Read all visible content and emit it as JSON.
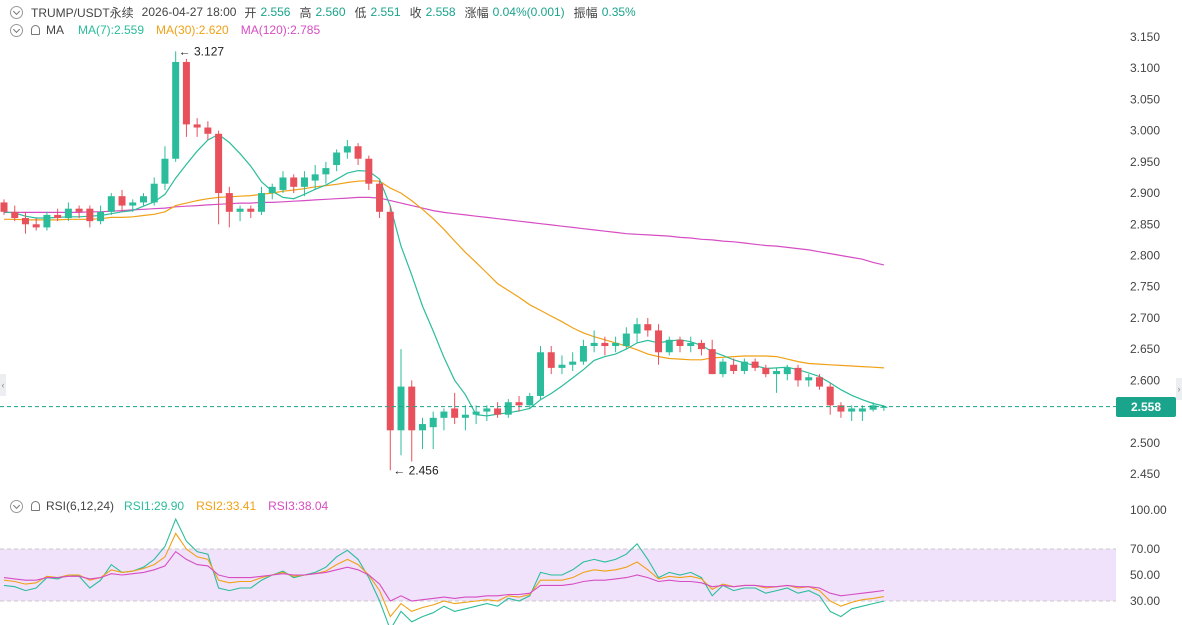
{
  "header": {
    "symbol": "TRUMP/USDT永续",
    "datetime": "2026-04-27 18:00",
    "open_label": "开",
    "open": "2.556",
    "high_label": "高",
    "high": "2.560",
    "low_label": "低",
    "low": "2.551",
    "close_label": "收",
    "close": "2.558",
    "change_label": "涨幅",
    "change": "0.04%(0.001)",
    "amp_label": "振幅",
    "amp": "0.35%"
  },
  "ma_legend": {
    "name": "MA",
    "ma7": "MA(7):2.559",
    "ma30": "MA(30):2.620",
    "ma120": "MA(120):2.785"
  },
  "rsi_legend": {
    "name": "RSI(6,12,24)",
    "rsi1": "RSI1:29.90",
    "rsi2": "RSI2:33.41",
    "rsi3": "RSI3:38.04"
  },
  "last_price_label": "2.558",
  "annotations": {
    "high": "← 3.127",
    "low": "← 2.456"
  },
  "colors": {
    "up": "#2bbd9b",
    "down": "#e8505b",
    "ma7": "#2bbd9b",
    "ma30": "#f0a116",
    "ma120": "#d64dc3",
    "rsi_band": "#efe2fa",
    "last_price": "#1aa48b"
  },
  "chart_data": [
    {
      "type": "candlestick",
      "title": "TRUMP/USDT永续",
      "ylim": [
        2.43,
        3.165
      ],
      "y_ticks": [
        "3.150",
        "3.100",
        "3.050",
        "3.000",
        "2.950",
        "2.900",
        "2.850",
        "2.800",
        "2.750",
        "2.700",
        "2.650",
        "2.600",
        "2.550",
        "2.500",
        "2.450"
      ],
      "last_price": 2.558,
      "ohlc": [
        [
          2.885,
          2.89,
          2.865,
          2.87
        ],
        [
          2.87,
          2.88,
          2.855,
          2.86
        ],
        [
          2.86,
          2.87,
          2.835,
          2.85
        ],
        [
          2.85,
          2.86,
          2.84,
          2.845
        ],
        [
          2.845,
          2.87,
          2.84,
          2.865
        ],
        [
          2.865,
          2.875,
          2.855,
          2.86
        ],
        [
          2.86,
          2.885,
          2.855,
          2.875
        ],
        [
          2.875,
          2.88,
          2.86,
          2.87
        ],
        [
          2.875,
          2.88,
          2.845,
          2.855
        ],
        [
          2.855,
          2.88,
          2.85,
          2.87
        ],
        [
          2.87,
          2.9,
          2.865,
          2.895
        ],
        [
          2.895,
          2.905,
          2.87,
          2.88
        ],
        [
          2.88,
          2.89,
          2.87,
          2.885
        ],
        [
          2.885,
          2.9,
          2.88,
          2.895
        ],
        [
          2.885,
          2.925,
          2.88,
          2.915
        ],
        [
          2.915,
          2.975,
          2.905,
          2.955
        ],
        [
          2.955,
          3.127,
          2.95,
          3.11
        ],
        [
          3.11,
          3.115,
          2.99,
          3.01
        ],
        [
          3.01,
          3.02,
          2.99,
          3.005
        ],
        [
          3.005,
          3.015,
          2.985,
          2.995
        ],
        [
          2.995,
          3.0,
          2.85,
          2.9
        ],
        [
          2.9,
          2.91,
          2.845,
          2.87
        ],
        [
          2.87,
          2.88,
          2.855,
          2.875
        ],
        [
          2.875,
          2.88,
          2.86,
          2.87
        ],
        [
          2.87,
          2.91,
          2.865,
          2.9
        ],
        [
          2.9,
          2.915,
          2.89,
          2.91
        ],
        [
          2.905,
          2.935,
          2.9,
          2.925
        ],
        [
          2.925,
          2.93,
          2.9,
          2.91
        ],
        [
          2.91,
          2.935,
          2.895,
          2.925
        ],
        [
          2.92,
          2.945,
          2.905,
          2.93
        ],
        [
          2.93,
          2.95,
          2.915,
          2.94
        ],
        [
          2.945,
          2.97,
          2.935,
          2.965
        ],
        [
          2.965,
          2.985,
          2.955,
          2.975
        ],
        [
          2.975,
          2.98,
          2.945,
          2.955
        ],
        [
          2.955,
          2.96,
          2.905,
          2.915
        ],
        [
          2.915,
          2.92,
          2.86,
          2.87
        ],
        [
          2.87,
          2.88,
          2.456,
          2.52
        ],
        [
          2.52,
          2.65,
          2.48,
          2.59
        ],
        [
          2.59,
          2.6,
          2.47,
          2.52
        ],
        [
          2.52,
          2.54,
          2.49,
          2.53
        ],
        [
          2.525,
          2.55,
          2.49,
          2.54
        ],
        [
          2.54,
          2.555,
          2.52,
          2.55
        ],
        [
          2.555,
          2.58,
          2.53,
          2.54
        ],
        [
          2.54,
          2.56,
          2.52,
          2.545
        ],
        [
          2.545,
          2.56,
          2.53,
          2.55
        ],
        [
          2.55,
          2.56,
          2.535,
          2.555
        ],
        [
          2.555,
          2.565,
          2.54,
          2.545
        ],
        [
          2.545,
          2.57,
          2.54,
          2.565
        ],
        [
          2.565,
          2.575,
          2.55,
          2.56
        ],
        [
          2.56,
          2.58,
          2.555,
          2.575
        ],
        [
          2.575,
          2.655,
          2.57,
          2.645
        ],
        [
          2.645,
          2.655,
          2.61,
          2.62
        ],
        [
          2.62,
          2.64,
          2.61,
          2.625
        ],
        [
          2.625,
          2.645,
          2.615,
          2.63
        ],
        [
          2.63,
          2.665,
          2.625,
          2.655
        ],
        [
          2.655,
          2.68,
          2.645,
          2.66
        ],
        [
          2.66,
          2.67,
          2.64,
          2.655
        ],
        [
          2.655,
          2.67,
          2.645,
          2.66
        ],
        [
          2.655,
          2.685,
          2.65,
          2.675
        ],
        [
          2.675,
          2.7,
          2.66,
          2.69
        ],
        [
          2.69,
          2.7,
          2.67,
          2.68
        ],
        [
          2.68,
          2.69,
          2.625,
          2.645
        ],
        [
          2.645,
          2.67,
          2.64,
          2.665
        ],
        [
          2.665,
          2.67,
          2.645,
          2.655
        ],
        [
          2.655,
          2.67,
          2.645,
          2.66
        ],
        [
          2.66,
          2.665,
          2.64,
          2.65
        ],
        [
          2.65,
          2.665,
          2.61,
          2.61
        ],
        [
          2.61,
          2.635,
          2.605,
          2.63
        ],
        [
          2.625,
          2.635,
          2.61,
          2.615
        ],
        [
          2.615,
          2.635,
          2.61,
          2.63
        ],
        [
          2.63,
          2.635,
          2.615,
          2.62
        ],
        [
          2.62,
          2.625,
          2.605,
          2.61
        ],
        [
          2.61,
          2.62,
          2.58,
          2.615
        ],
        [
          2.61,
          2.625,
          2.6,
          2.62
        ],
        [
          2.62,
          2.625,
          2.59,
          2.6
        ],
        [
          2.6,
          2.61,
          2.59,
          2.605
        ],
        [
          2.605,
          2.61,
          2.585,
          2.59
        ],
        [
          2.59,
          2.595,
          2.545,
          2.56
        ],
        [
          2.56,
          2.565,
          2.54,
          2.55
        ],
        [
          2.55,
          2.56,
          2.535,
          2.555
        ],
        [
          2.55,
          2.56,
          2.535,
          2.555
        ],
        [
          2.553,
          2.565,
          2.55,
          2.56
        ],
        [
          2.556,
          2.56,
          2.551,
          2.558
        ]
      ],
      "ma7": [
        2.87,
        2.868,
        2.863,
        2.86,
        2.86,
        2.861,
        2.862,
        2.862,
        2.863,
        2.864,
        2.867,
        2.87,
        2.872,
        2.879,
        2.886,
        2.898,
        2.924,
        2.946,
        2.967,
        2.985,
        2.994,
        2.981,
        2.963,
        2.943,
        2.918,
        2.903,
        2.893,
        2.891,
        2.898,
        2.906,
        2.913,
        2.922,
        2.932,
        2.936,
        2.935,
        2.922,
        2.879,
        2.815,
        2.769,
        2.719,
        2.679,
        2.637,
        2.6,
        2.577,
        2.545,
        2.543,
        2.546,
        2.548,
        2.551,
        2.555,
        2.569,
        2.579,
        2.591,
        2.604,
        2.617,
        2.632,
        2.638,
        2.642,
        2.65,
        2.66,
        2.664,
        2.66,
        2.663,
        2.665,
        2.662,
        2.656,
        2.646,
        2.64,
        2.633,
        2.628,
        2.624,
        2.619,
        2.62,
        2.621,
        2.617,
        2.612,
        2.606,
        2.596,
        2.585,
        2.576,
        2.569,
        2.563,
        2.559
      ],
      "ma30": [
        2.858,
        2.858,
        2.857,
        2.857,
        2.857,
        2.857,
        2.858,
        2.858,
        2.858,
        2.859,
        2.861,
        2.861,
        2.862,
        2.864,
        2.866,
        2.87,
        2.88,
        2.884,
        2.888,
        2.891,
        2.893,
        2.894,
        2.895,
        2.896,
        2.898,
        2.9,
        2.903,
        2.905,
        2.907,
        2.91,
        2.912,
        2.914,
        2.917,
        2.919,
        2.92,
        2.919,
        2.908,
        2.9,
        2.888,
        2.874,
        2.859,
        2.842,
        2.823,
        2.805,
        2.789,
        2.772,
        2.755,
        2.744,
        2.733,
        2.721,
        2.712,
        2.703,
        2.694,
        2.684,
        2.676,
        2.67,
        2.665,
        2.66,
        2.655,
        2.649,
        2.642,
        2.638,
        2.635,
        2.634,
        2.633,
        2.633,
        2.636,
        2.637,
        2.638,
        2.639,
        2.639,
        2.639,
        2.638,
        2.634,
        2.63,
        2.627,
        2.626,
        2.625,
        2.624,
        2.623,
        2.622,
        2.621,
        2.62
      ],
      "ma120": [
        2.869,
        2.869,
        2.869,
        2.869,
        2.869,
        2.869,
        2.869,
        2.869,
        2.87,
        2.87,
        2.871,
        2.872,
        2.873,
        2.874,
        2.875,
        2.876,
        2.878,
        2.879,
        2.88,
        2.881,
        2.882,
        2.883,
        2.884,
        2.884,
        2.885,
        2.885,
        2.886,
        2.887,
        2.888,
        2.889,
        2.89,
        2.891,
        2.892,
        2.893,
        2.893,
        2.892,
        2.888,
        2.884,
        2.88,
        2.876,
        2.872,
        2.869,
        2.867,
        2.865,
        2.863,
        2.861,
        2.859,
        2.857,
        2.855,
        2.853,
        2.851,
        2.849,
        2.847,
        2.845,
        2.843,
        2.841,
        2.839,
        2.837,
        2.835,
        2.834,
        2.833,
        2.832,
        2.831,
        2.829,
        2.828,
        2.826,
        2.825,
        2.823,
        2.822,
        2.82,
        2.818,
        2.816,
        2.815,
        2.813,
        2.811,
        2.809,
        2.806,
        2.803,
        2.8,
        2.797,
        2.794,
        2.789,
        2.785
      ]
    },
    {
      "type": "line",
      "title": "RSI(6,12,24)",
      "ylim": [
        20,
        100
      ],
      "y_ticks": [
        "100.00",
        "70.00",
        "50.00",
        "30.00"
      ],
      "band": [
        30,
        70
      ],
      "series": [
        {
          "name": "RSI1",
          "values": [
            42,
            41,
            38,
            40,
            48,
            47,
            50,
            49,
            40,
            46,
            58,
            52,
            53,
            56,
            62,
            72,
            93,
            76,
            68,
            66,
            40,
            38,
            40,
            40,
            46,
            50,
            53,
            48,
            50,
            52,
            56,
            64,
            69,
            62,
            48,
            30,
            8,
            22,
            14,
            18,
            21,
            26,
            22,
            24,
            26,
            28,
            26,
            32,
            30,
            34,
            52,
            50,
            50,
            54,
            60,
            62,
            60,
            62,
            66,
            74,
            62,
            48,
            52,
            50,
            52,
            48,
            34,
            42,
            38,
            40,
            40,
            36,
            38,
            40,
            36,
            38,
            34,
            22,
            18,
            24,
            26,
            28,
            29.9
          ]
        },
        {
          "name": "RSI2",
          "values": [
            46,
            45,
            43,
            44,
            49,
            48,
            50,
            50,
            46,
            48,
            54,
            52,
            53,
            55,
            58,
            64,
            82,
            70,
            64,
            62,
            46,
            44,
            45,
            45,
            48,
            50,
            52,
            49,
            50,
            51,
            53,
            58,
            62,
            58,
            50,
            38,
            18,
            28,
            22,
            25,
            27,
            30,
            28,
            29,
            30,
            31,
            30,
            34,
            33,
            35,
            46,
            46,
            46,
            48,
            52,
            54,
            53,
            54,
            56,
            60,
            54,
            47,
            49,
            48,
            49,
            47,
            39,
            43,
            41,
            42,
            42,
            40,
            41,
            42,
            40,
            41,
            38,
            30,
            26,
            29,
            31,
            32,
            33.41
          ]
        },
        {
          "name": "RSI3",
          "values": [
            48,
            47,
            46,
            46,
            48,
            48,
            49,
            49,
            47,
            48,
            51,
            50,
            51,
            52,
            54,
            57,
            68,
            62,
            58,
            57,
            50,
            48,
            48,
            48,
            49,
            50,
            51,
            50,
            50,
            51,
            52,
            54,
            56,
            54,
            50,
            43,
            30,
            34,
            30,
            31,
            32,
            33,
            32,
            33,
            33,
            34,
            34,
            35,
            35,
            36,
            42,
            42,
            42,
            43,
            45,
            46,
            46,
            47,
            48,
            50,
            48,
            45,
            46,
            45,
            45,
            44,
            41,
            42,
            41,
            42,
            42,
            41,
            41,
            42,
            41,
            41,
            40,
            36,
            34,
            35,
            36,
            37,
            38.04
          ]
        }
      ]
    }
  ]
}
